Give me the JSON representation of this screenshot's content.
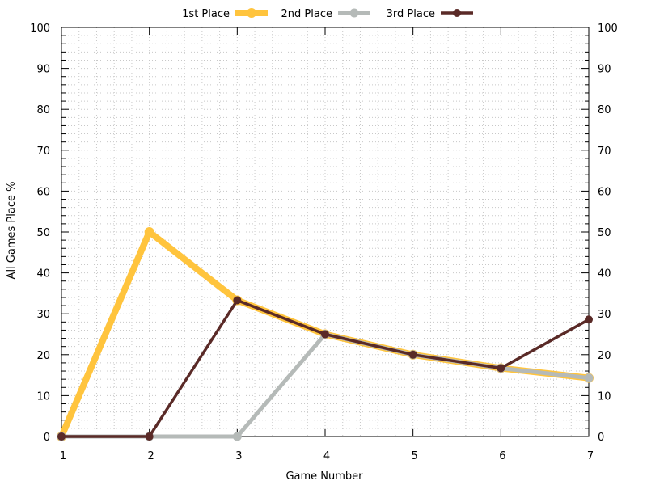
{
  "chart_data": {
    "type": "line",
    "title": "",
    "xlabel": "Game Number",
    "ylabel": "All Games Place %",
    "x": [
      1,
      2,
      3,
      4,
      5,
      6,
      7
    ],
    "xlim": [
      1,
      7
    ],
    "ylim": [
      0,
      100
    ],
    "y_major_ticks": [
      0,
      10,
      20,
      30,
      40,
      50,
      60,
      70,
      80,
      90,
      100
    ],
    "y_minor_step": 2,
    "x_minor_step": 0.2,
    "grid": true,
    "legend_position": "top-center",
    "series": [
      {
        "name": "1st Place",
        "color": "#FFC43D",
        "values": [
          0,
          50,
          33.3,
          25,
          20,
          16.7,
          14.3
        ]
      },
      {
        "name": "2nd Place",
        "color": "#B5BAB8",
        "values": [
          0,
          0,
          0,
          25,
          20,
          16.7,
          14.3
        ]
      },
      {
        "name": "3rd Place",
        "color": "#5A2A27",
        "values": [
          0,
          0,
          33.3,
          25,
          20,
          16.7,
          28.6
        ]
      }
    ]
  }
}
